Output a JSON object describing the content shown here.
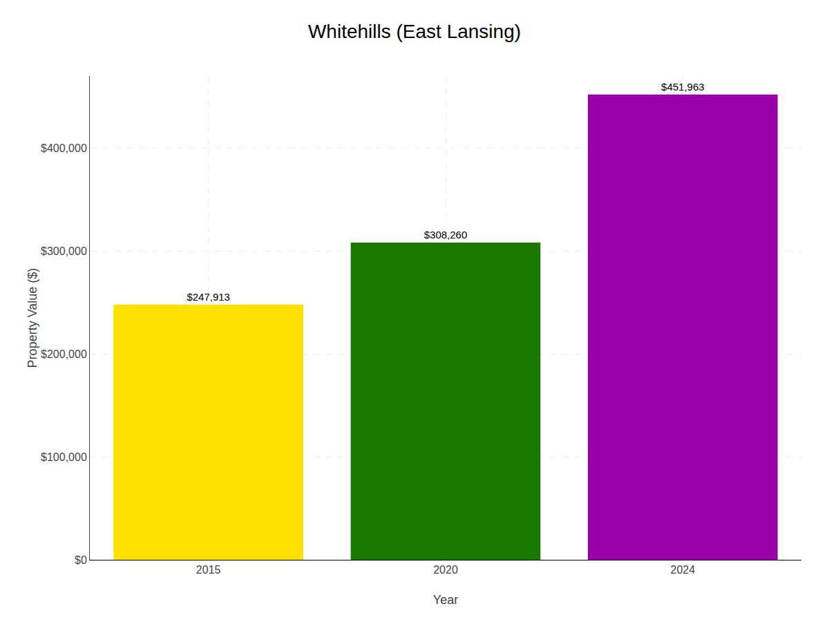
{
  "chart_data": {
    "type": "bar",
    "title": "Whitehills (East Lansing)",
    "xlabel": "Year",
    "ylabel": "Property Value ($)",
    "categories": [
      "2015",
      "2020",
      "2024"
    ],
    "values": [
      247913,
      308260,
      451963
    ],
    "value_labels": [
      "$247,913",
      "$308,260",
      "$451,963"
    ],
    "data_labels": true,
    "colors": [
      "#FFE000",
      "#1A7A00",
      "#9B00A8"
    ],
    "ylim": [
      0,
      470000
    ],
    "yticks": [
      {
        "value": 0,
        "label": "$0"
      },
      {
        "value": 100000,
        "label": "$100,000"
      },
      {
        "value": 200000,
        "label": "$200,000"
      },
      {
        "value": 300000,
        "label": "$300,000"
      },
      {
        "value": 400000,
        "label": "$400,000"
      }
    ],
    "grid": true
  }
}
